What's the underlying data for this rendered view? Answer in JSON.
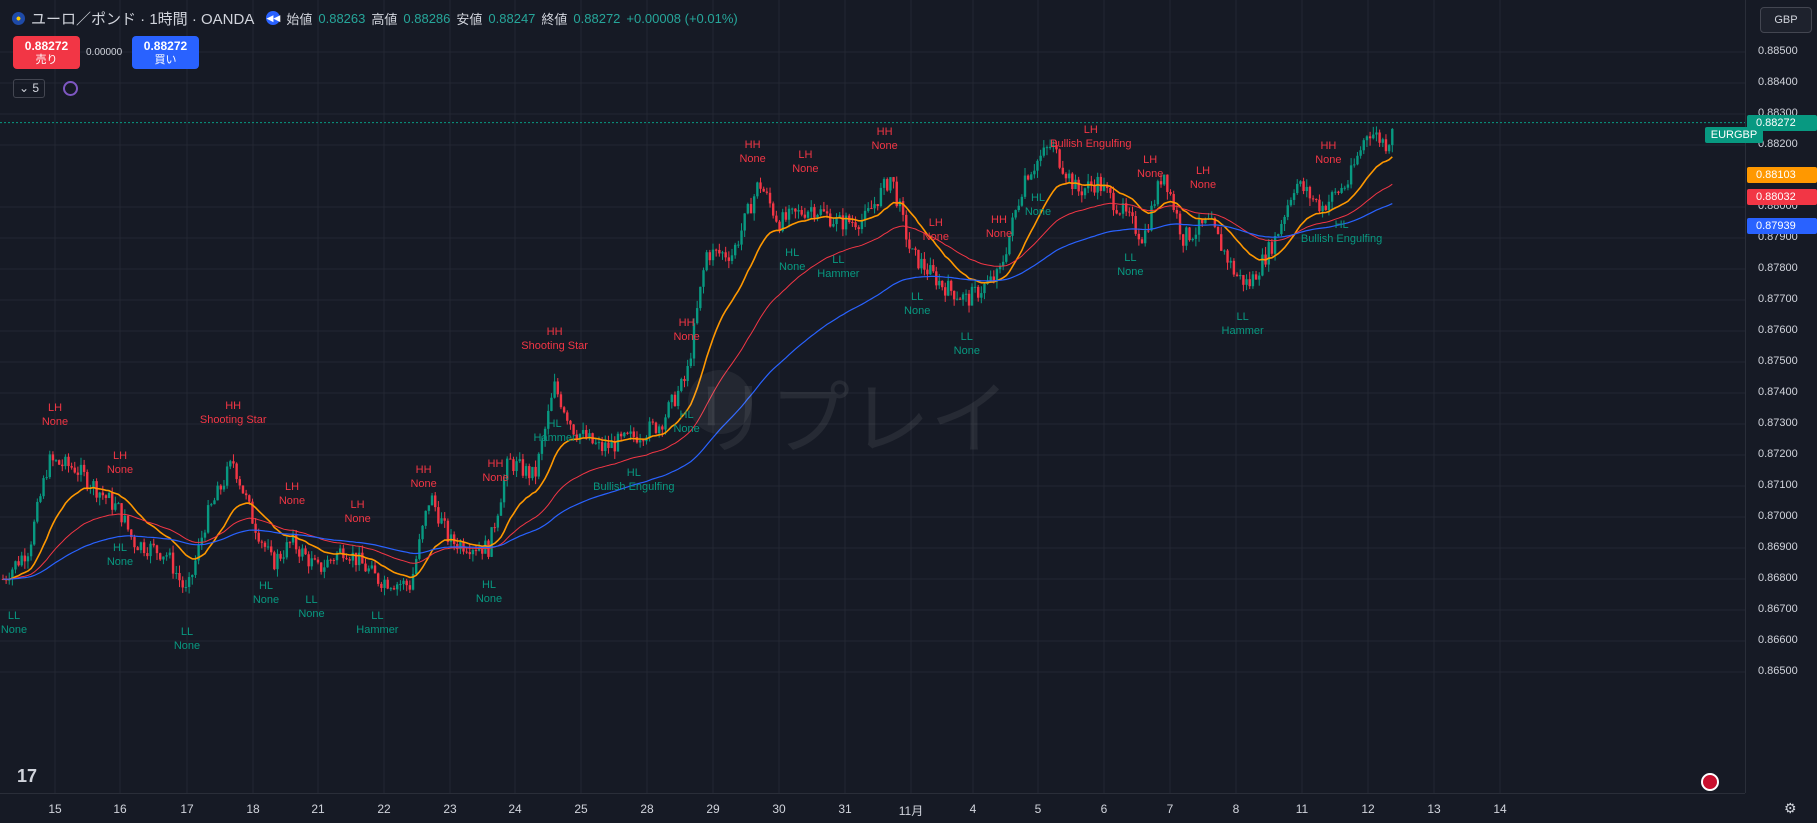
{
  "header": {
    "title": "ユーロ／ポンド · 1時間 · OANDA",
    "open_label": "始値",
    "open": "0.88263",
    "high_label": "高値",
    "high": "0.88286",
    "low_label": "安値",
    "low": "0.88247",
    "close_label": "終値",
    "close": "0.88272",
    "change": "+0.00008 (+0.01%)"
  },
  "trade": {
    "sell_price": "0.88272",
    "sell_label": "売り",
    "spread": "0.00000",
    "buy_price": "0.88272",
    "buy_label": "買い"
  },
  "interval_label": "5",
  "currency_button": "GBP",
  "watermark": "リプレイ",
  "price_axis": {
    "labels": [
      "0.88500",
      "0.88400",
      "0.88300",
      "0.88200",
      "0.88000",
      "0.87900",
      "0.87800",
      "0.87700",
      "0.87600",
      "0.87500",
      "0.87400",
      "0.87300",
      "0.87200",
      "0.87100",
      "0.87000",
      "0.86900",
      "0.86800",
      "0.86700",
      "0.86600",
      "0.86500"
    ],
    "symbol_tag": "EURGBP",
    "last_price": "0.88272",
    "tags": [
      {
        "value": "0.88103",
        "color": "#ff9800"
      },
      {
        "value": "0.88032",
        "color": "#f23645"
      },
      {
        "value": "0.87939",
        "color": "#2962ff"
      }
    ]
  },
  "time_axis": [
    "15",
    "16",
    "17",
    "18",
    "21",
    "22",
    "23",
    "24",
    "25",
    "28",
    "29",
    "30",
    "31",
    "11月",
    "4",
    "5",
    "6",
    "7",
    "8",
    "11",
    "12",
    "13",
    "14"
  ],
  "annotations": [
    {
      "kind": "h",
      "a": "LH",
      "b": "None",
      "t": 15
    },
    {
      "kind": "h",
      "a": "LH",
      "b": "None",
      "t": 16
    },
    {
      "kind": "h",
      "a": "HH",
      "b": "Shooting Star",
      "t": 17.7
    },
    {
      "kind": "h",
      "a": "LH",
      "b": "None",
      "t": 18.6
    },
    {
      "kind": "h",
      "a": "LH",
      "b": "None",
      "t": 19.6
    },
    {
      "kind": "h",
      "a": "HH",
      "b": "None",
      "t": 20.6
    },
    {
      "kind": "h",
      "a": "HH",
      "b": "None",
      "t": 21.7
    },
    {
      "kind": "h",
      "a": "HH",
      "b": "Shooting Star",
      "t": 22.6
    },
    {
      "kind": "h",
      "a": "HH",
      "b": "None",
      "t": 24.6
    },
    {
      "kind": "h",
      "a": "HH",
      "b": "None",
      "t": 25.6
    },
    {
      "kind": "h",
      "a": "LH",
      "b": "None",
      "t": 26.4
    },
    {
      "kind": "h",
      "a": "HH",
      "b": "None",
      "t": 27.6
    },
    {
      "kind": "h",
      "a": "LH",
      "b": "None",
      "t": 28.4
    },
    {
      "kind": "h",
      "a": "HH",
      "b": "None",
      "t": 29.4
    },
    {
      "kind": "h",
      "a": "LH",
      "b": "Bullish Engulfing",
      "t": 30.8
    },
    {
      "kind": "h",
      "a": "LH",
      "b": "None",
      "t": 31.7
    },
    {
      "kind": "h",
      "a": "LH",
      "b": "None",
      "t": 32.5
    },
    {
      "kind": "h",
      "a": "HH",
      "b": "None",
      "t": 34.4
    },
    {
      "kind": "l",
      "a": "LL",
      "b": "None",
      "t": 14.2
    },
    {
      "kind": "l",
      "a": "HL",
      "b": "None",
      "t": 16
    },
    {
      "kind": "l",
      "a": "LL",
      "b": "None",
      "t": 17
    },
    {
      "kind": "l",
      "a": "HL",
      "b": "None",
      "t": 18.2
    },
    {
      "kind": "l",
      "a": "LL",
      "b": "None",
      "t": 18.9
    },
    {
      "kind": "l",
      "a": "LL",
      "b": "Hammer",
      "t": 19.9
    },
    {
      "kind": "l",
      "a": "HL",
      "b": "None",
      "t": 21.6
    },
    {
      "kind": "l",
      "a": "HL",
      "b": "Hammer",
      "t": 22.6
    },
    {
      "kind": "l",
      "a": "HL",
      "b": "Bullish Engulfing",
      "t": 23.8
    },
    {
      "kind": "l",
      "a": "HL",
      "b": "None",
      "t": 24.6
    },
    {
      "kind": "l",
      "a": "HL",
      "b": "None",
      "t": 26.2
    },
    {
      "kind": "l",
      "a": "LL",
      "b": "Hammer",
      "t": 26.9
    },
    {
      "kind": "l",
      "a": "LL",
      "b": "None",
      "t": 28.1
    },
    {
      "kind": "l",
      "a": "LL",
      "b": "None",
      "t": 28.9
    },
    {
      "kind": "l",
      "a": "HL",
      "b": "None",
      "t": 30.0
    },
    {
      "kind": "l",
      "a": "LL",
      "b": "None",
      "t": 31.4
    },
    {
      "kind": "l",
      "a": "LL",
      "b": "Hammer",
      "t": 33.1
    },
    {
      "kind": "l",
      "a": "HL",
      "b": "Bullish Engulfing",
      "t": 34.6
    }
  ],
  "colors": {
    "up": "#089981",
    "down": "#f23645",
    "ema_orange": "#ff9800",
    "ema_red": "#f23645",
    "ema_blue": "#2962ff",
    "bg": "#161a25",
    "grid": "#232732"
  }
}
